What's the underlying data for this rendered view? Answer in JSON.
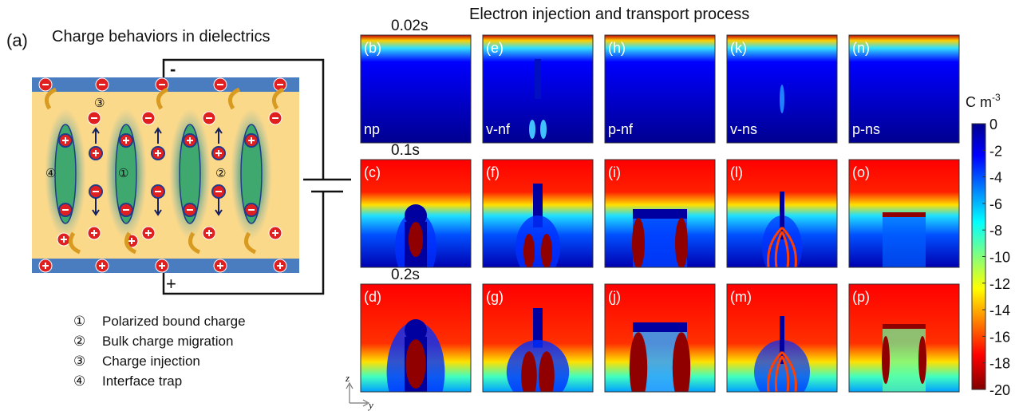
{
  "panel_a": {
    "label": "(a)",
    "title": "Charge behaviors in dielectrics",
    "polarity_top": "-",
    "polarity_bottom": "+",
    "markers": [
      "③",
      "①",
      "②",
      "④"
    ],
    "legend": [
      {
        "marker": "①",
        "text": "Polarized bound charge"
      },
      {
        "marker": "②",
        "text": "Bulk charge migration"
      },
      {
        "marker": "③",
        "text": "Charge injection"
      },
      {
        "marker": "④",
        "text": "Interface trap"
      }
    ]
  },
  "simulation": {
    "title": "Electron injection and transport process",
    "rows": [
      {
        "time": "0.02s",
        "panels": [
          {
            "label": "(b)",
            "name": "np"
          },
          {
            "label": "(e)",
            "name": "v-nf"
          },
          {
            "label": "(h)",
            "name": "p-nf"
          },
          {
            "label": "(k)",
            "name": "v-ns"
          },
          {
            "label": "(n)",
            "name": "p-ns"
          }
        ]
      },
      {
        "time": "0.1s",
        "panels": [
          {
            "label": "(c)"
          },
          {
            "label": "(f)"
          },
          {
            "label": "(i)"
          },
          {
            "label": "(l)"
          },
          {
            "label": "(o)"
          }
        ]
      },
      {
        "time": "0.2s",
        "panels": [
          {
            "label": "(d)"
          },
          {
            "label": "(g)"
          },
          {
            "label": "(j)"
          },
          {
            "label": "(m)"
          },
          {
            "label": "(p)"
          }
        ]
      }
    ],
    "axes": {
      "vertical": "z",
      "horizontal": "y"
    }
  },
  "colorbar": {
    "unit": "C m",
    "unit_exponent": "-3",
    "labels": [
      "0",
      "-2",
      "-4",
      "-6",
      "-8",
      "-10",
      "-12",
      "-14",
      "-16",
      "-18",
      "-20"
    ]
  }
}
